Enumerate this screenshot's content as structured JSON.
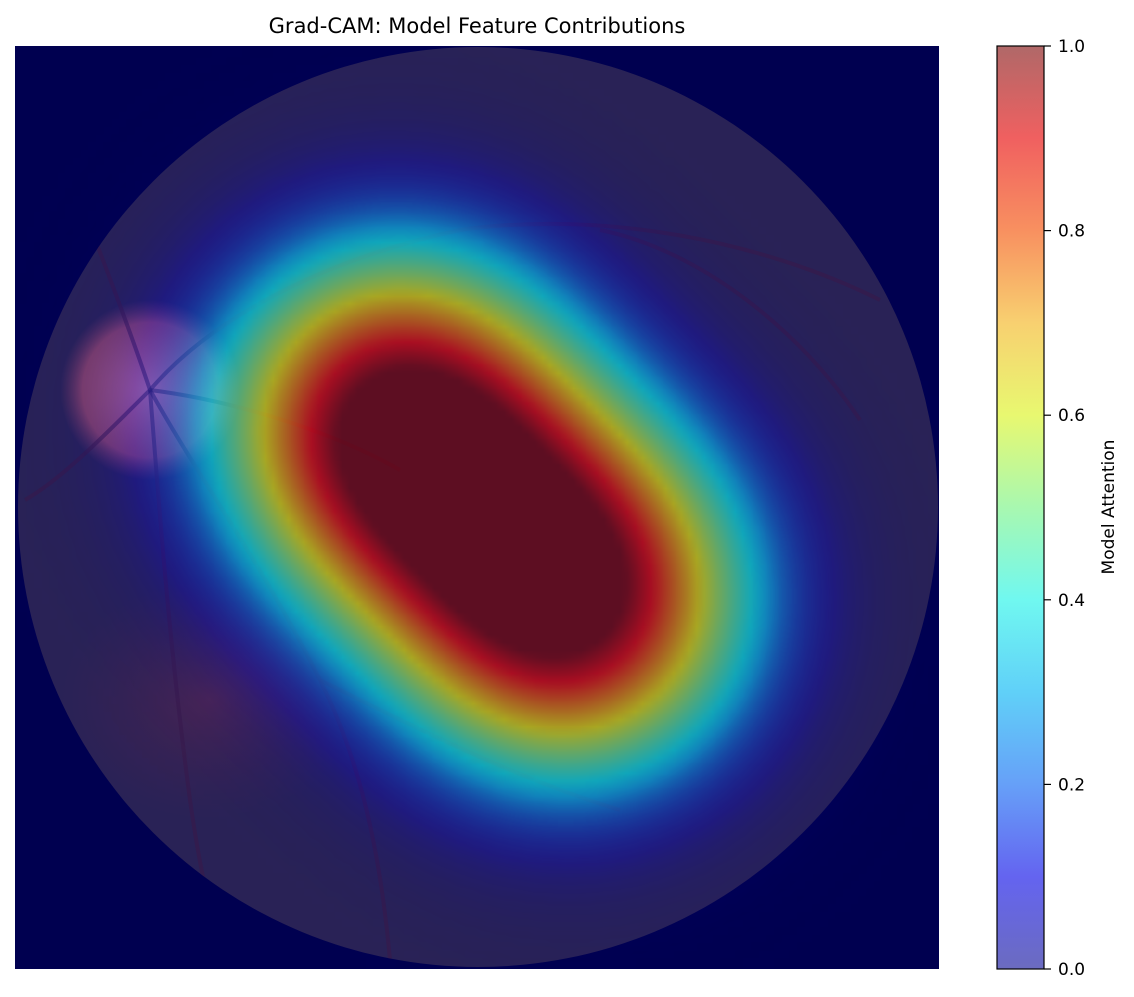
{
  "chart_data": {
    "type": "heatmap",
    "title": "Grad-CAM: Model Feature Contributions",
    "background_color": "#000050",
    "fundus_color": "#2a2356",
    "colormap": "jet",
    "overlay_alpha": 0.6,
    "optic_disc": {
      "cx": 0.18,
      "cy": 0.38,
      "r": 0.09,
      "color": "#b15a78"
    },
    "hotspots": [
      {
        "cx": 0.41,
        "cy": 0.41,
        "sigma": 0.14,
        "peak": 1.0
      },
      {
        "cx": 0.6,
        "cy": 0.6,
        "sigma": 0.14,
        "peak": 1.0
      }
    ],
    "colorbar": {
      "label": "Model Attention",
      "range": [
        0.0,
        1.0
      ],
      "ticks": [
        0.0,
        0.2,
        0.4,
        0.6,
        0.8,
        1.0
      ],
      "tick_labels": [
        "0.0",
        "0.2",
        "0.4",
        "0.6",
        "0.8",
        "1.0"
      ]
    },
    "axes": "off",
    "grid": false
  }
}
